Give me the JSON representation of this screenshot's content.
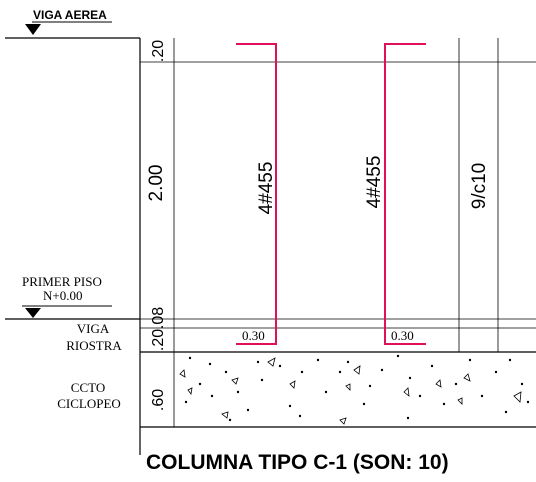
{
  "drawing": {
    "levels": {
      "top": "VIGA AEREA",
      "first_floor_line1": "PRIMER PISO",
      "first_floor_line2": "N+0.00"
    },
    "side_labels": {
      "beam_line1": "VIGA",
      "beam_line2": "RIOSTRA",
      "concrete_line1": "CCTO",
      "concrete_line2": "CICLOPEO"
    },
    "dimensions": {
      "top": ".20",
      "main": "2.00",
      "lower": ".08",
      "beam": ".20",
      "foundation": ".60"
    },
    "rebar": {
      "bar1": "4#455",
      "bar2": "4#455",
      "stirrups": "9/c10",
      "hook1": "0.30",
      "hook2": "0.30"
    },
    "title": "COLUMNA TIPO C-1 (SON: 10)",
    "colors": {
      "line": "#000000",
      "thin_line": "#555555",
      "rebar": "#e0105a"
    }
  }
}
